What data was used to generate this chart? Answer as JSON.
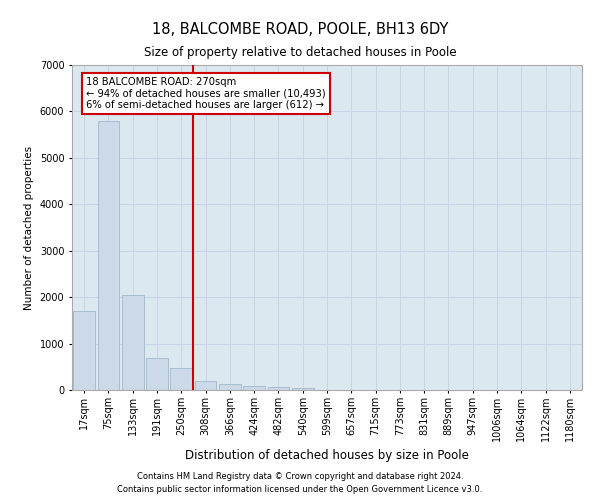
{
  "title1": "18, BALCOMBE ROAD, POOLE, BH13 6DY",
  "title2": "Size of property relative to detached houses in Poole",
  "xlabel": "Distribution of detached houses by size in Poole",
  "ylabel": "Number of detached properties",
  "categories": [
    "17sqm",
    "75sqm",
    "133sqm",
    "191sqm",
    "250sqm",
    "308sqm",
    "366sqm",
    "424sqm",
    "482sqm",
    "540sqm",
    "599sqm",
    "657sqm",
    "715sqm",
    "773sqm",
    "831sqm",
    "889sqm",
    "947sqm",
    "1006sqm",
    "1064sqm",
    "1122sqm",
    "1180sqm"
  ],
  "values": [
    1700,
    5800,
    2050,
    700,
    480,
    200,
    130,
    80,
    55,
    45,
    10,
    4,
    0,
    0,
    0,
    0,
    0,
    0,
    0,
    0,
    0
  ],
  "bar_color": "#ccd9e8",
  "bar_edge_color": "#a0b8cc",
  "vline_color": "#cc0000",
  "annotation_box_text": "18 BALCOMBE ROAD: 270sqm\n← 94% of detached houses are smaller (10,493)\n6% of semi-detached houses are larger (612) →",
  "annotation_box_edge_color": "#cc0000",
  "grid_color": "#c5d5e5",
  "background_color": "#dce8f0",
  "ylim": [
    0,
    7000
  ],
  "yticks": [
    0,
    1000,
    2000,
    3000,
    4000,
    5000,
    6000,
    7000
  ],
  "footnote1": "Contains HM Land Registry data © Crown copyright and database right 2024.",
  "footnote2": "Contains public sector information licensed under the Open Government Licence v3.0."
}
